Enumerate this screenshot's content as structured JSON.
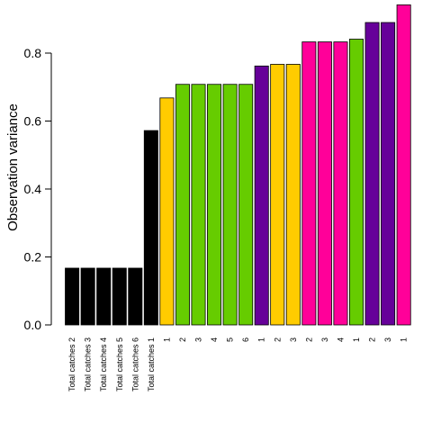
{
  "chart_data": {
    "type": "bar",
    "title": "",
    "xlabel": "",
    "ylabel": "Observation variance",
    "ylim": [
      0,
      0.95
    ],
    "yticks": [
      0.0,
      0.2,
      0.4,
      0.6,
      0.8
    ],
    "ytick_labels": [
      "0.0",
      "0.2",
      "0.4",
      "0.6",
      "0.8"
    ],
    "grid": false,
    "legend": "none",
    "categories": [
      "Total catches 2",
      "Total catches 3",
      "Total catches 4",
      "Total catches 5",
      "Total catches 6",
      "Total catches 1",
      "1",
      "2",
      "3",
      "4",
      "5",
      "6",
      "1",
      "2",
      "3",
      "2",
      "3",
      "4",
      "1",
      "2",
      "3",
      "1"
    ],
    "values": [
      0.167,
      0.167,
      0.167,
      0.167,
      0.167,
      0.572,
      0.668,
      0.708,
      0.708,
      0.708,
      0.708,
      0.708,
      0.762,
      0.767,
      0.767,
      0.833,
      0.833,
      0.833,
      0.841,
      0.89,
      0.89,
      0.942
    ],
    "bar_colors": [
      "#000000",
      "#000000",
      "#000000",
      "#000000",
      "#000000",
      "#000000",
      "#FFCC00",
      "#66CC00",
      "#66CC00",
      "#66CC00",
      "#66CC00",
      "#66CC00",
      "#660099",
      "#FFCC00",
      "#FFCC00",
      "#FF0099",
      "#FF0099",
      "#FF0099",
      "#66CC00",
      "#660099",
      "#660099",
      "#FF0099"
    ]
  }
}
